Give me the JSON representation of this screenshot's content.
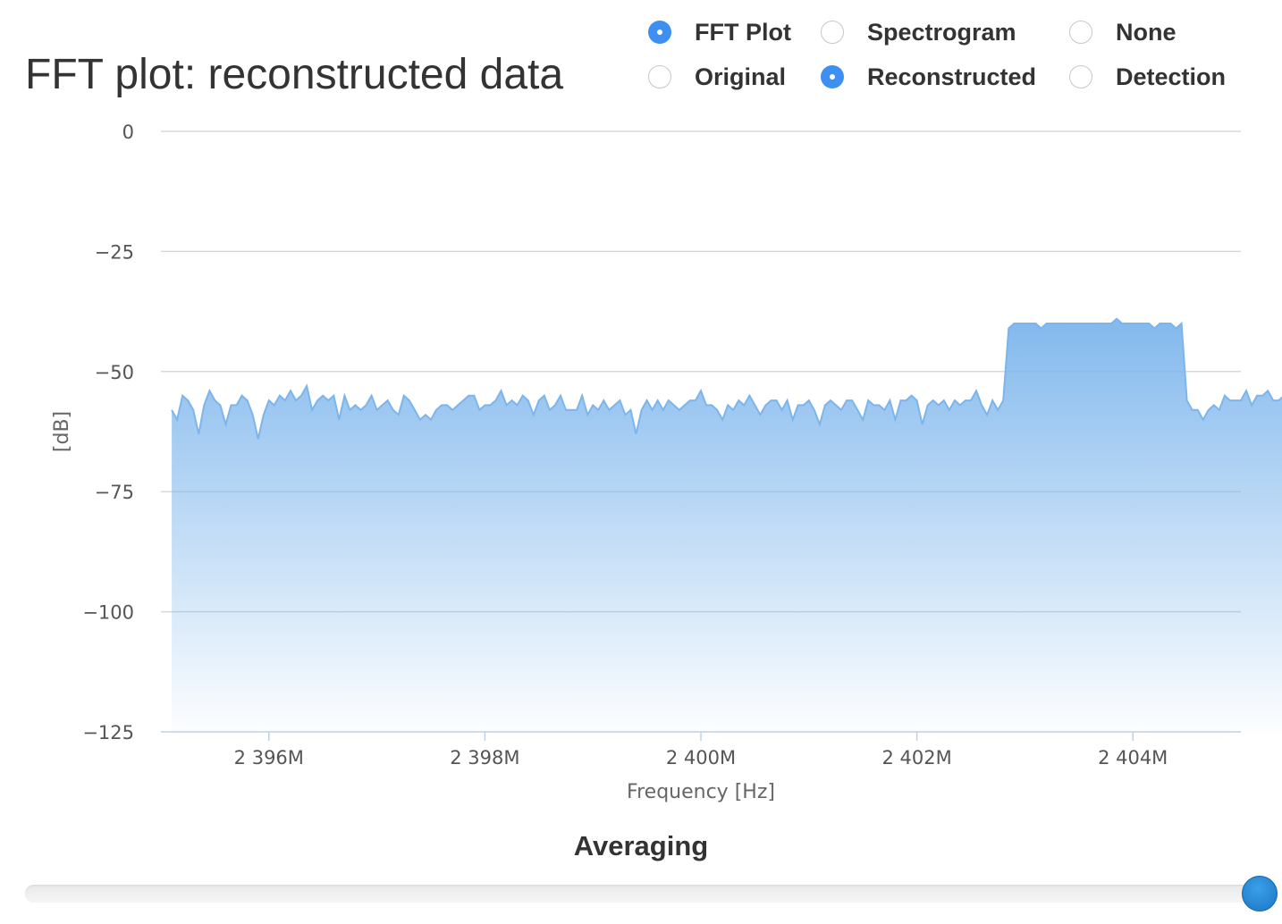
{
  "page": {
    "title": "FFT plot: reconstructed data"
  },
  "view_options": [
    {
      "label": "FFT Plot",
      "checked": true
    },
    {
      "label": "Spectrogram",
      "checked": false
    },
    {
      "label": "None",
      "checked": false
    }
  ],
  "data_options": [
    {
      "label": "Original",
      "checked": false
    },
    {
      "label": "Reconstructed",
      "checked": true
    },
    {
      "label": "Detection",
      "checked": false
    }
  ],
  "chart_data": {
    "type": "area",
    "xlabel": "Frequency [Hz]",
    "ylabel": "[dB]",
    "xlim": [
      2395000000,
      2405000000
    ],
    "ylim": [
      -125,
      0
    ],
    "ytick_labels": [
      "0",
      "−25",
      "−50",
      "−75",
      "−100",
      "−125"
    ],
    "ytick_values": [
      0,
      -25,
      -50,
      -75,
      -100,
      -125
    ],
    "xtick_labels": [
      "2 396M",
      "2 398M",
      "2 400M",
      "2 402M",
      "2 404M"
    ],
    "xtick_values": [
      2396000000,
      2398000000,
      2400000000,
      2402000000,
      2404000000
    ],
    "grid": true,
    "series": [
      {
        "color": "#7cb5ec",
        "x_start": 2395100000,
        "x_step": 50000,
        "y": [
          -58,
          -60,
          -55,
          -56,
          -58,
          -63,
          -57,
          -54,
          -56,
          -57,
          -61,
          -57,
          -57,
          -55,
          -56,
          -59,
          -64,
          -59,
          -56,
          -57,
          -55,
          -56,
          -54,
          -56,
          -55,
          -53,
          -58,
          -56,
          -55,
          -56,
          -55,
          -60,
          -55,
          -58,
          -57,
          -58,
          -57,
          -55,
          -58,
          -57,
          -56,
          -58,
          -59,
          -55,
          -56,
          -58,
          -60,
          -59,
          -60,
          -58,
          -57,
          -57,
          -58,
          -57,
          -56,
          -55,
          -55,
          -58,
          -57,
          -57,
          -56,
          -54,
          -57,
          -56,
          -57,
          -55,
          -56,
          -59,
          -56,
          -55,
          -58,
          -57,
          -55,
          -58,
          -58,
          -58,
          -55,
          -59,
          -57,
          -58,
          -56,
          -58,
          -57,
          -56,
          -59,
          -58,
          -63,
          -58,
          -56,
          -58,
          -56,
          -58,
          -56,
          -57,
          -58,
          -57,
          -56,
          -56,
          -54,
          -57,
          -57,
          -58,
          -60,
          -57,
          -58,
          -56,
          -57,
          -55,
          -57,
          -59,
          -57,
          -56,
          -56,
          -58,
          -56,
          -60,
          -57,
          -57,
          -56,
          -58,
          -61,
          -57,
          -56,
          -57,
          -58,
          -56,
          -56,
          -58,
          -60,
          -56,
          -57,
          -57,
          -58,
          -56,
          -60,
          -56,
          -56,
          -55,
          -56,
          -61,
          -57,
          -56,
          -57,
          -56,
          -58,
          -56,
          -57,
          -56,
          -56,
          -54,
          -57,
          -59,
          -56,
          -58,
          -56,
          -41,
          -40,
          -40,
          -40,
          -40,
          -40,
          -41,
          -40,
          -40,
          -40,
          -40,
          -40,
          -40,
          -40,
          -40,
          -40,
          -40,
          -40,
          -40,
          -40,
          -39,
          -40,
          -40,
          -40,
          -40,
          -40,
          -40,
          -41,
          -40,
          -40,
          -40,
          -41,
          -40,
          -56,
          -58,
          -58,
          -60,
          -58,
          -57,
          -58,
          -55,
          -56,
          -56,
          -56,
          -54,
          -57,
          -55,
          -55,
          -54,
          -56,
          -56,
          -55
        ]
      }
    ]
  },
  "averaging": {
    "label": "Averaging",
    "value": 1.0
  }
}
